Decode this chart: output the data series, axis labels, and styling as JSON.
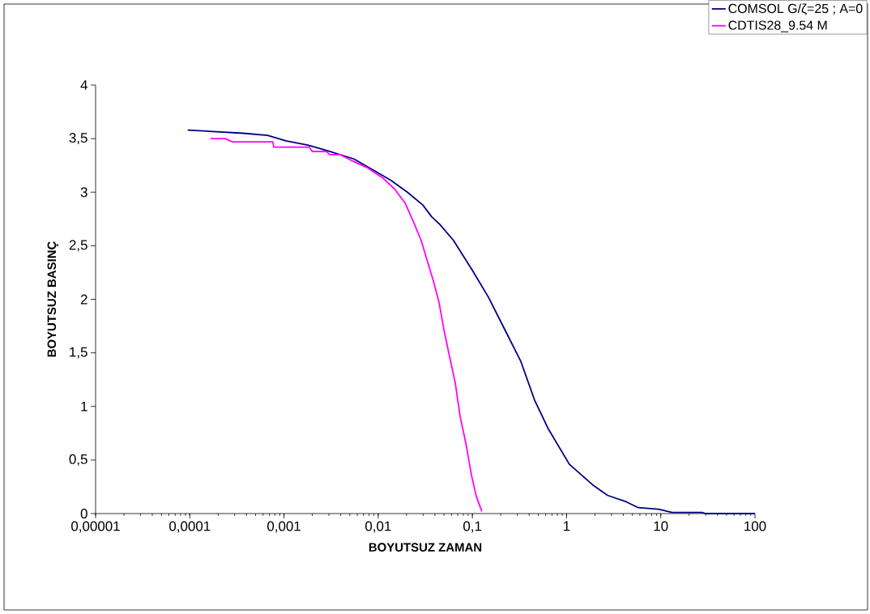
{
  "chart_data": {
    "type": "line",
    "xlabel": "BOYUTSUZ ZAMAN",
    "ylabel": "BOYUTSUZ BASINÇ",
    "log": "x",
    "xlim": [
      1e-05,
      100
    ],
    "ylim": [
      0,
      4
    ],
    "xticks": [
      {
        "value": 1e-05,
        "label": "0,00001"
      },
      {
        "value": 0.0001,
        "label": "0,0001"
      },
      {
        "value": 0.001,
        "label": "0,001"
      },
      {
        "value": 0.01,
        "label": "0,01"
      },
      {
        "value": 0.1,
        "label": "0,1"
      },
      1,
      10,
      100
    ],
    "yticks": [
      0,
      {
        "value": 0.5,
        "label": "0,5"
      },
      1,
      {
        "value": 1.5,
        "label": "1,5"
      },
      2,
      {
        "value": 2.5,
        "label": "2,5"
      },
      3,
      {
        "value": 3.5,
        "label": "3,5"
      },
      4
    ],
    "legend": "top right",
    "marker": "none",
    "line_style": "solid",
    "series": [
      {
        "name": "COMSOL G/ζ=25 ; A=0",
        "color": "#000080",
        "x": [
          9.5e-05,
          0.00037,
          0.00067,
          0.00105,
          0.00179,
          0.00282,
          0.00553,
          0.00873,
          0.0137,
          0.0204,
          0.0298,
          0.037,
          0.045,
          0.063,
          0.1,
          0.148,
          0.22,
          0.327,
          0.457,
          0.64,
          1.07,
          1.94,
          2.72,
          4.29,
          5.77,
          9.46,
          13.2,
          27.5,
          30,
          100
        ],
        "values": [
          3.58,
          3.55,
          3.53,
          3.48,
          3.44,
          3.39,
          3.31,
          3.21,
          3.11,
          3.0,
          2.88,
          2.77,
          2.7,
          2.55,
          2.27,
          2.02,
          1.72,
          1.42,
          1.06,
          0.79,
          0.46,
          0.26,
          0.17,
          0.11,
          0.055,
          0.04,
          0.01,
          0.01,
          0,
          0
        ]
      },
      {
        "name": "CDTIS28_9.54 M",
        "color": "#ff00ff",
        "x": [
          0.000166,
          0.000238,
          0.000284,
          0.00076,
          0.00078,
          0.00186,
          0.002,
          0.00282,
          0.00305,
          0.00395,
          0.0051,
          0.0076,
          0.0113,
          0.0149,
          0.0193,
          0.0235,
          0.0286,
          0.0329,
          0.0386,
          0.0443,
          0.0498,
          0.0571,
          0.0658,
          0.074,
          0.0851,
          0.0977,
          0.11,
          0.126
        ],
        "values": [
          3.5,
          3.5,
          3.47,
          3.47,
          3.42,
          3.42,
          3.38,
          3.38,
          3.35,
          3.35,
          3.3,
          3.23,
          3.13,
          3.03,
          2.9,
          2.73,
          2.55,
          2.37,
          2.17,
          1.97,
          1.72,
          1.47,
          1.22,
          0.91,
          0.66,
          0.36,
          0.16,
          0.02
        ]
      }
    ]
  }
}
